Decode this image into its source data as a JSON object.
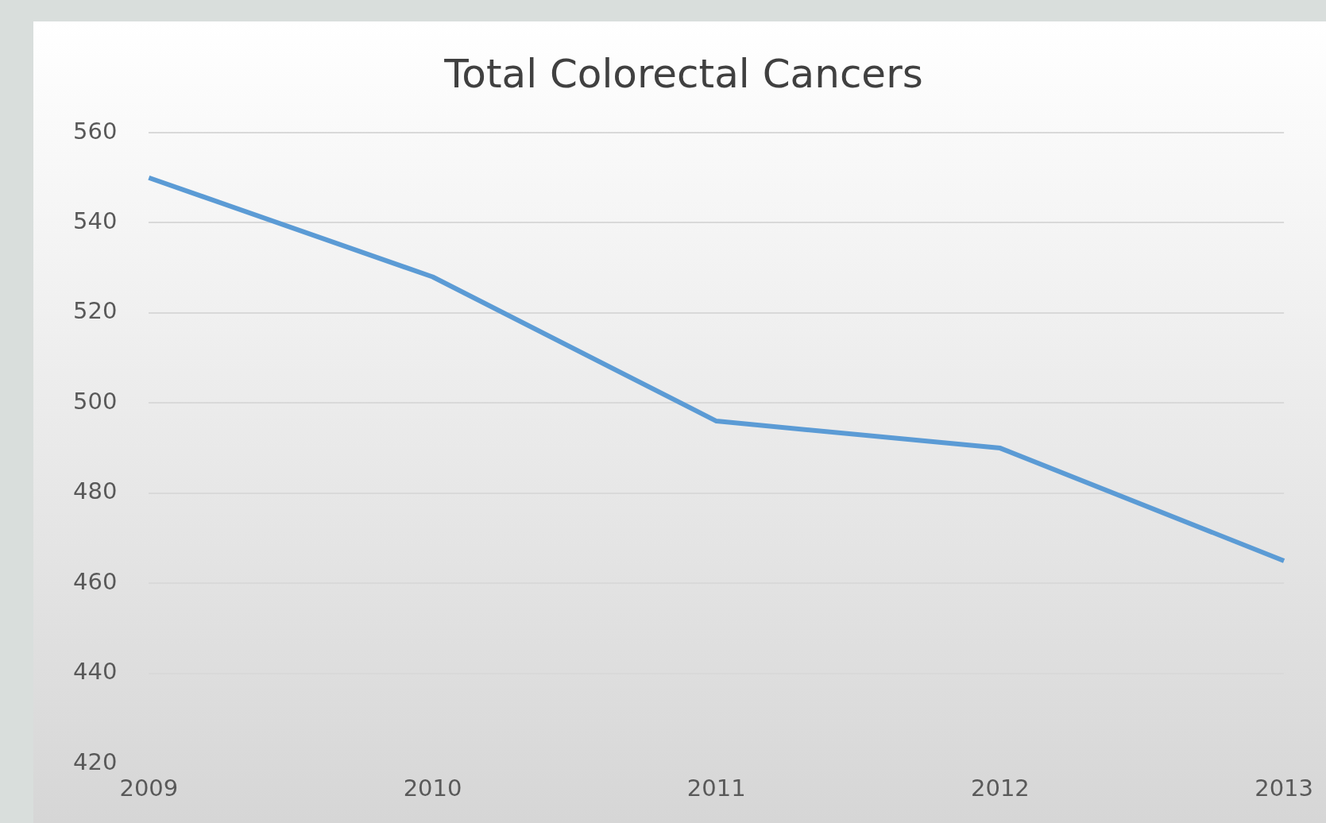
{
  "chart_data": {
    "type": "line",
    "title": "Total Colorectal Cancers",
    "categories": [
      "2009",
      "2010",
      "2011",
      "2012",
      "2013"
    ],
    "values": [
      550,
      528,
      496,
      490,
      465
    ],
    "color": "#5b9bd5",
    "ylim": [
      420,
      560
    ],
    "yticks": [
      420,
      440,
      460,
      480,
      500,
      520,
      540,
      560
    ],
    "grid": "y",
    "legend": false,
    "marker": "none",
    "line_style": "solid"
  }
}
